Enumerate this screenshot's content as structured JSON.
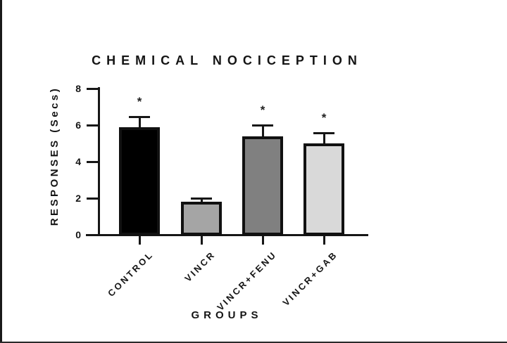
{
  "page": {
    "background": "#ffffff",
    "edge_color": "#1a1a1a"
  },
  "chart_data": {
    "type": "bar",
    "title": "CHEMICAL NOCICEPTION",
    "xlabel": "GROUPS",
    "ylabel": "RESPONSES (Secs)",
    "categories": [
      "CONTROL",
      "VINCR",
      "VINCR+FENU",
      "VINCR+GAB"
    ],
    "values": [
      5.9,
      1.8,
      5.4,
      5.0
    ],
    "errors": [
      0.6,
      0.25,
      0.65,
      0.6
    ],
    "significance": [
      "*",
      "",
      "*",
      "*"
    ],
    "bar_colors": [
      "#000000",
      "#a5a5a5",
      "#808080",
      "#d9d9d9"
    ],
    "bar_border_color": "#111111",
    "axis_color": "#161616",
    "ylim": [
      0,
      8
    ],
    "yticks": [
      0,
      2,
      4,
      6,
      8
    ],
    "grid": false,
    "legend": null,
    "error_bar_style": "cap-above-only"
  }
}
